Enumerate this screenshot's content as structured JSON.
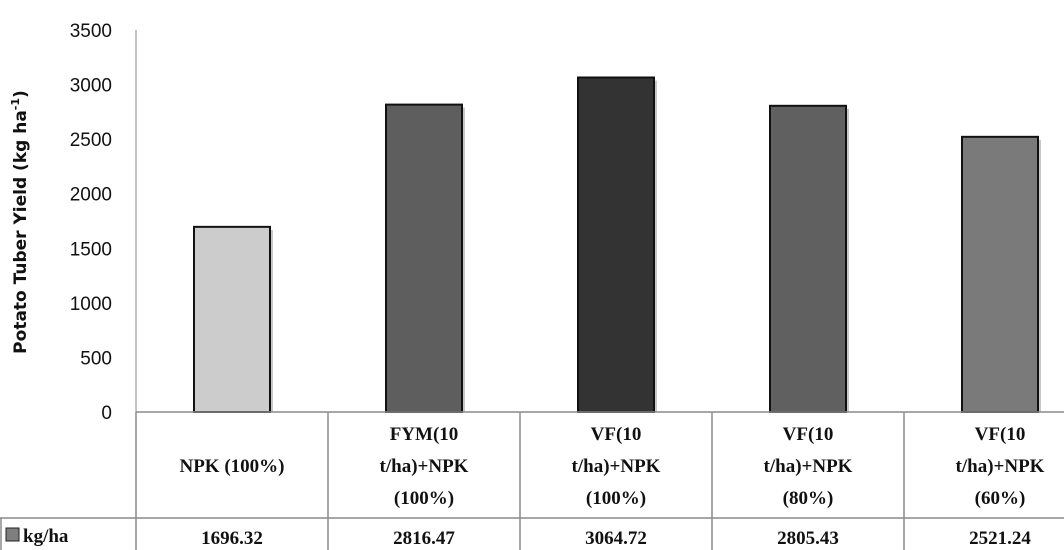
{
  "chart_data": {
    "type": "bar",
    "categories": [
      [
        "NPK (100%)"
      ],
      [
        "FYM(10",
        "t/ha)+NPK",
        "(100%)"
      ],
      [
        "VF(10",
        "t/ha)+NPK",
        "(100%)"
      ],
      [
        "VF(10",
        "t/ha)+NPK",
        "(80%)"
      ],
      [
        "VF(10",
        "t/ha)+NPK",
        "(60%)"
      ]
    ],
    "series": [
      {
        "name": "kg/ha",
        "values": [
          1696.32,
          2816.47,
          3064.72,
          2805.43,
          2521.24
        ],
        "value_labels": [
          "1696.32",
          "2816.47",
          "3064.72",
          "2805.43",
          "2521.24"
        ]
      }
    ],
    "bar_colors": [
      "#cccccc",
      "#5e5e5e",
      "#333333",
      "#606060",
      "#7a7a7a"
    ],
    "ylabel": "Potato Tuber Yield (kg ha",
    "ylabel_superscript": "-1",
    "ylabel_suffix": ")",
    "ylim": [
      0,
      3500
    ],
    "yticks": [
      "0",
      "500",
      "1000",
      "1500",
      "2000",
      "2500",
      "3000",
      "3500"
    ],
    "grid": false,
    "legend": "data-table",
    "legend_marker_color": "#7f7f7f"
  }
}
